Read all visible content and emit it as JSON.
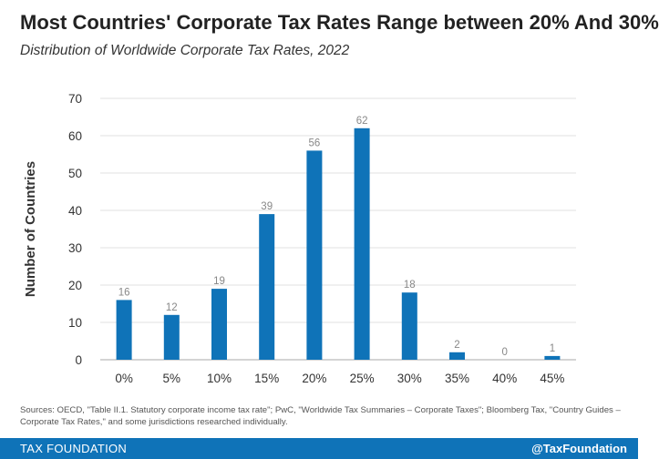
{
  "header": {
    "title": "Most Countries' Corporate Tax Rates Range between 20% And 30%",
    "subtitle": "Distribution of Worldwide Corporate Tax Rates, 2022"
  },
  "chart_data": {
    "type": "bar",
    "title": "Most Countries' Corporate Tax Rates Range between 20% And 30%",
    "subtitle": "Distribution of Worldwide Corporate Tax Rates, 2022",
    "xlabel": "",
    "ylabel": "Number of Countries",
    "categories": [
      "0%",
      "5%",
      "10%",
      "15%",
      "20%",
      "25%",
      "30%",
      "35%",
      "40%",
      "45%"
    ],
    "values": [
      16,
      12,
      19,
      39,
      56,
      62,
      18,
      2,
      0,
      1
    ],
    "ylim": [
      0,
      70
    ],
    "yticks": [
      0,
      10,
      20,
      30,
      40,
      50,
      60,
      70
    ],
    "grid": true,
    "data_labels": true,
    "legend": "none",
    "colors": {
      "bar": "#0f73b8",
      "grid": "#e0e0e0",
      "axis": "#aaaaaa",
      "tick_label": "#333333",
      "data_label": "#888888"
    }
  },
  "footer": {
    "sources": "Sources: OECD, \"Table II.1. Statutory corporate income tax rate\"; PwC, \"Worldwide Tax Summaries – Corporate Taxes\"; Bloomberg Tax, \"Country Guides – Corporate Tax Rates,\" and some jurisdictions researched individually.",
    "brand": "TAX FOUNDATION",
    "handle": "@TaxFoundation",
    "background": "#0f73b8"
  }
}
